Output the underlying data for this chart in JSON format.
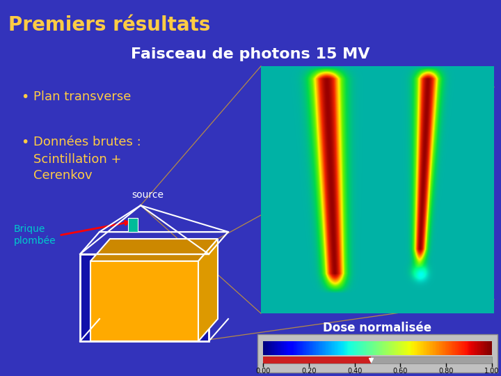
{
  "bg_color": "#3333bb",
  "title_text": "Premiers résultats",
  "title_color": "#ffcc44",
  "title_fontsize": 20,
  "subtitle_text": "Faisceau de photons 15 MV",
  "subtitle_color": "#ffffff",
  "subtitle_fontsize": 16,
  "bullet1": "Plan transverse",
  "bullet2_line1": "Données brutes :",
  "bullet2_line2": "Scintillation +",
  "bullet2_line3": "Cerenkov",
  "bullet_color": "#ffcc44",
  "bullet_fontsize": 13,
  "source_label": "source",
  "source_color": "#ffffff",
  "brique_label": "Brique\nplombée",
  "brique_color": "#00cccc",
  "dose_label": "Dose normalisée",
  "dose_color": "#ffffff",
  "colorbar_ticks": [
    0.0,
    0.2,
    0.4,
    0.6,
    0.8,
    1.0
  ],
  "line_color": "#cc9933",
  "box_edge_color": "#ffffff",
  "box_face_color": "#ffaa00",
  "box_bg_color": "#1111aa"
}
